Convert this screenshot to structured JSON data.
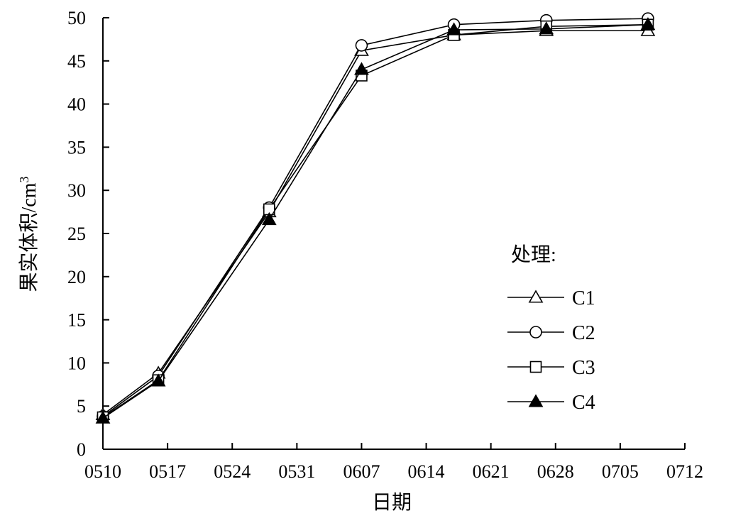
{
  "chart_data": {
    "type": "line",
    "title": "",
    "xlabel": "日期",
    "ylabel": "果实体积/cm³",
    "ylim": [
      0,
      50
    ],
    "yticks": [
      0,
      5,
      10,
      15,
      20,
      25,
      30,
      35,
      40,
      45,
      50
    ],
    "xticks": [
      "0510",
      "0517",
      "0524",
      "0531",
      "0607",
      "0614",
      "0621",
      "0628",
      "0705",
      "0712"
    ],
    "x": [
      "0510",
      "0516",
      "0528",
      "0607",
      "0617",
      "0627",
      "0708"
    ],
    "legend_title": "处理:",
    "legend_position": "right",
    "grid": false,
    "series": [
      {
        "name": "C1",
        "marker": "triangle-open",
        "values": [
          4.0,
          8.8,
          27.5,
          46.2,
          48.0,
          48.5,
          48.5
        ]
      },
      {
        "name": "C2",
        "marker": "circle-open",
        "values": [
          3.8,
          8.5,
          28.0,
          46.8,
          49.2,
          49.7,
          49.9
        ]
      },
      {
        "name": "C3",
        "marker": "square-open",
        "values": [
          3.7,
          8.0,
          27.8,
          43.3,
          48.0,
          49.0,
          49.2
        ]
      },
      {
        "name": "C4",
        "marker": "triangle-filled",
        "values": [
          3.6,
          7.9,
          26.6,
          44.0,
          48.6,
          48.7,
          49.2
        ]
      }
    ]
  }
}
